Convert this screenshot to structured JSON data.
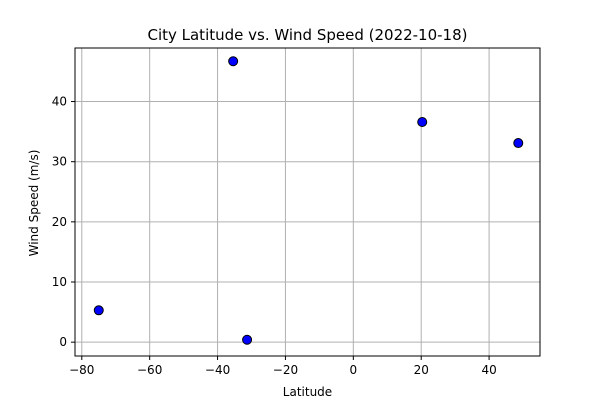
{
  "chart_data": {
    "type": "scatter",
    "title": "City Latitude vs. Wind Speed (2022-10-18)",
    "xlabel": "Latitude",
    "ylabel": "Wind Speed (m/s)",
    "xlim": [
      -82,
      55
    ],
    "ylim": [
      -2.3,
      48.9
    ],
    "x_ticks": [
      -80,
      -60,
      -40,
      -20,
      0,
      20,
      40
    ],
    "y_ticks": [
      0,
      10,
      20,
      30,
      40
    ],
    "x_tick_labels": [
      "−80",
      "−60",
      "−40",
      "−20",
      "0",
      "20",
      "40"
    ],
    "y_tick_labels": [
      "0",
      "10",
      "20",
      "30",
      "40"
    ],
    "grid": true,
    "points": [
      {
        "x": -75.0,
        "y": 5.3
      },
      {
        "x": -35.4,
        "y": 46.7
      },
      {
        "x": -31.3,
        "y": 0.4
      },
      {
        "x": 20.3,
        "y": 36.6
      },
      {
        "x": 48.6,
        "y": 33.1
      }
    ],
    "marker_color": "#0000ff",
    "marker_edge_color": "#000000",
    "grid_color": "#b0b0b0"
  }
}
